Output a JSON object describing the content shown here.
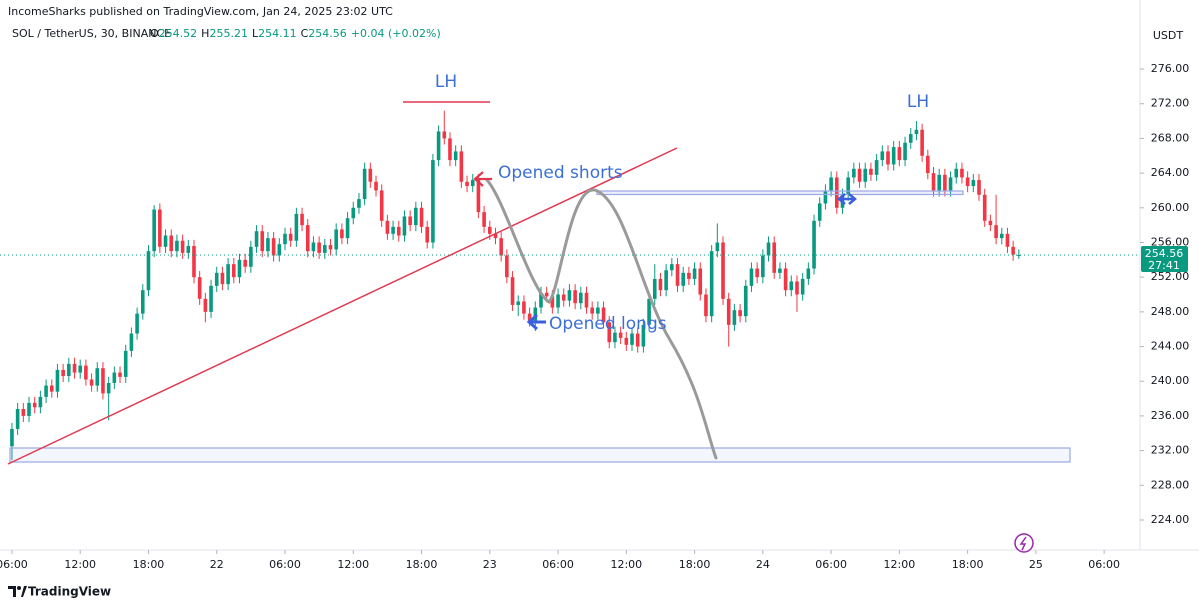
{
  "header": {
    "published": "IncomeSharks published on TradingView.com, Jan 24, 2025 23:02 UTC",
    "brand": "TradingView"
  },
  "chart_data": {
    "type": "candlestick",
    "legend": {
      "symbol": "SOL / TetherUS, 30, BINANCE",
      "fields": [
        {
          "label": "O",
          "value": 254.52
        },
        {
          "label": "H",
          "value": 255.21
        },
        {
          "label": "L",
          "value": 254.11
        },
        {
          "label": "C",
          "value": 254.56
        }
      ],
      "change": "+0.04 (+0.02%)"
    },
    "currency": "USDT",
    "countdown": "27:41",
    "annotations": [
      "LH",
      "Opened shorts",
      "Opened longs",
      "LH"
    ],
    "up_color": "#089981",
    "down_color": "#f23645",
    "grid": false,
    "xlim": [
      -2.1,
      198.3
    ],
    "ylim": [
      220.54,
      283.96
    ],
    "xticks": [
      {
        "value": 0,
        "label": "06:00"
      },
      {
        "value": 12,
        "label": "12:00"
      },
      {
        "value": 24,
        "label": "18:00"
      },
      {
        "value": 36,
        "label": "22"
      },
      {
        "value": 48,
        "label": "06:00"
      },
      {
        "value": 60,
        "label": "12:00"
      },
      {
        "value": 72,
        "label": "18:00"
      },
      {
        "value": 84,
        "label": "23"
      },
      {
        "value": 96,
        "label": "06:00"
      },
      {
        "value": 108,
        "label": "12:00"
      },
      {
        "value": 120,
        "label": "18:00"
      },
      {
        "value": 132,
        "label": "24"
      },
      {
        "value": 144,
        "label": "06:00"
      },
      {
        "value": 156,
        "label": "12:00"
      },
      {
        "value": 168,
        "label": "18:00"
      },
      {
        "value": 180,
        "label": "25"
      },
      {
        "value": 192,
        "label": "06:00"
      }
    ],
    "yticks": [
      {
        "value": 224,
        "label": "224.00"
      },
      {
        "value": 228,
        "label": "228.00"
      },
      {
        "value": 232,
        "label": "232.00"
      },
      {
        "value": 236,
        "label": "236.00"
      },
      {
        "value": 240,
        "label": "240.00"
      },
      {
        "value": 244,
        "label": "244.00"
      },
      {
        "value": 248,
        "label": "248.00"
      },
      {
        "value": 252,
        "label": "252.00"
      },
      {
        "value": 256,
        "label": "256.00"
      },
      {
        "value": 260,
        "label": "260.00"
      },
      {
        "value": 264,
        "label": "264.00"
      },
      {
        "value": 268,
        "label": "268.00"
      },
      {
        "value": 272,
        "label": "272.00"
      },
      {
        "value": 276,
        "label": "276.00"
      }
    ],
    "open": [
      232.5,
      234.5,
      236.8,
      236.0,
      237.5,
      237.0,
      238.2,
      239.5,
      238.8,
      241.3,
      240.6,
      242.0,
      241.0,
      241.8,
      240.2,
      239.5,
      241.5,
      238.6,
      239.8,
      241.0,
      240.5,
      243.5,
      245.5,
      247.8,
      250.5,
      255.0,
      259.8,
      255.5,
      256.8,
      255.0,
      256.2,
      254.8,
      255.6,
      252.0,
      249.5,
      248.0,
      251.0,
      252.5,
      251.2,
      253.5,
      252.0,
      254.0,
      253.2,
      255.5,
      257.3,
      255.0,
      256.5,
      254.5,
      255.8,
      257.0,
      256.2,
      259.3,
      258.0,
      255.0,
      256.0,
      254.8,
      255.7,
      255.2,
      257.5,
      256.5,
      258.8,
      260.0,
      261.0,
      264.5,
      263.0,
      262.0,
      258.5,
      257.0,
      257.8,
      256.8,
      259.0,
      258.0,
      260.0,
      257.8,
      256.0,
      265.5,
      268.8,
      268.0,
      265.5,
      266.5,
      263.0,
      262.5,
      263.2,
      259.5,
      257.8,
      257.0,
      256.5,
      254.5,
      252.0,
      248.8,
      249.2,
      247.8,
      247.0,
      248.5,
      250.2,
      249.8,
      248.5,
      250.0,
      249.3,
      250.5,
      249.0,
      250.2,
      248.5,
      247.8,
      248.5,
      246.8,
      244.5,
      245.6,
      245.0,
      244.2,
      245.5,
      244.0,
      246.5,
      249.5,
      251.8,
      250.5,
      252.8,
      253.5,
      251.0,
      252.5,
      251.8,
      253.0,
      250.0,
      247.5,
      255.0,
      256.0,
      249.5,
      246.5,
      248.2,
      247.5,
      251.0,
      253.0,
      252.0,
      254.5,
      256.0,
      252.5,
      253.0,
      250.5,
      251.5,
      250.0,
      251.8,
      253.0,
      258.5,
      260.5,
      262.0,
      263.5,
      260.0,
      261.5,
      263.5,
      264.5,
      263.0,
      264.5,
      263.8,
      265.5,
      266.5,
      265.0,
      267.0,
      265.5,
      267.5,
      268.5,
      269.0,
      266.0,
      264.0,
      262.0,
      263.8,
      262.0,
      263.5,
      264.5,
      263.5,
      262.5,
      263.2,
      261.5,
      258.5,
      258.0,
      256.5,
      257.0,
      255.5,
      254.52
    ],
    "high": [
      235.2,
      237.5,
      237.5,
      238.2,
      238.2,
      238.9,
      240.2,
      240.2,
      242.0,
      242.0,
      242.7,
      242.7,
      242.5,
      242.5,
      240.9,
      242.2,
      242.2,
      240.5,
      241.7,
      241.7,
      244.2,
      246.2,
      248.5,
      251.2,
      255.7,
      260.3,
      260.5,
      257.5,
      257.5,
      256.9,
      256.9,
      256.3,
      256.3,
      252.7,
      250.2,
      251.7,
      253.2,
      253.2,
      254.2,
      254.2,
      254.7,
      254.7,
      256.2,
      258.0,
      258.0,
      257.2,
      257.2,
      256.5,
      257.7,
      257.7,
      260.0,
      260.0,
      258.7,
      256.7,
      256.7,
      256.4,
      256.4,
      258.2,
      258.2,
      259.5,
      260.7,
      261.7,
      265.2,
      265.2,
      263.7,
      262.7,
      259.2,
      258.5,
      258.5,
      259.7,
      259.7,
      260.7,
      260.7,
      258.5,
      266.2,
      269.5,
      271.2,
      268.7,
      267.2,
      267.2,
      263.7,
      263.9,
      263.9,
      260.2,
      258.5,
      257.7,
      257.2,
      255.2,
      252.7,
      249.9,
      249.9,
      248.5,
      249.2,
      250.9,
      250.9,
      250.5,
      250.7,
      250.7,
      251.2,
      251.2,
      250.9,
      250.9,
      249.2,
      249.2,
      249.2,
      247.5,
      246.3,
      246.3,
      245.7,
      246.2,
      246.2,
      247.2,
      250.2,
      253.5,
      252.5,
      253.5,
      254.2,
      254.2,
      253.2,
      253.2,
      253.7,
      253.7,
      250.7,
      255.7,
      258.2,
      256.7,
      250.2,
      248.9,
      248.9,
      251.7,
      253.7,
      253.7,
      255.2,
      256.7,
      256.7,
      253.7,
      253.7,
      252.2,
      252.2,
      252.5,
      253.7,
      259.2,
      261.2,
      262.7,
      264.2,
      264.2,
      262.2,
      264.2,
      265.2,
      265.2,
      265.2,
      265.2,
      266.2,
      267.2,
      267.2,
      267.7,
      267.7,
      268.2,
      269.2,
      270.0,
      269.7,
      266.7,
      264.7,
      264.5,
      264.5,
      264.2,
      265.2,
      265.2,
      264.2,
      263.9,
      263.9,
      262.2,
      259.2,
      261.5,
      257.7,
      257.7,
      256.2,
      255.21
    ],
    "low": [
      230.9,
      233.8,
      235.3,
      235.3,
      236.3,
      236.3,
      237.5,
      238.1,
      238.1,
      239.9,
      239.9,
      240.3,
      240.3,
      239.5,
      238.8,
      238.8,
      237.9,
      235.5,
      239.1,
      239.8,
      239.8,
      242.8,
      244.8,
      247.1,
      249.8,
      254.3,
      254.8,
      254.8,
      254.3,
      254.3,
      254.1,
      254.1,
      251.3,
      248.8,
      246.8,
      247.3,
      250.3,
      250.5,
      250.5,
      251.3,
      251.3,
      252.5,
      252.5,
      254.8,
      254.3,
      254.3,
      253.8,
      253.8,
      255.1,
      255.5,
      255.5,
      257.3,
      254.3,
      254.3,
      254.1,
      254.1,
      254.5,
      254.5,
      255.8,
      255.8,
      258.1,
      259.3,
      260.3,
      262.3,
      261.3,
      257.8,
      256.3,
      256.3,
      256.1,
      256.1,
      257.3,
      257.3,
      257.1,
      255.3,
      255.3,
      264.8,
      267.3,
      264.8,
      264.8,
      262.3,
      261.8,
      261.8,
      258.8,
      257.1,
      256.3,
      255.8,
      253.8,
      251.3,
      248.1,
      247.5,
      247.1,
      246.3,
      245.8,
      247.8,
      249.1,
      247.8,
      247.8,
      248.6,
      248.6,
      248.3,
      248.3,
      247.8,
      247.1,
      247.1,
      246.1,
      243.8,
      243.8,
      244.3,
      243.5,
      243.5,
      243.3,
      243.3,
      245.8,
      248.8,
      249.8,
      249.8,
      252.1,
      250.3,
      250.3,
      251.1,
      251.1,
      249.3,
      246.8,
      246.8,
      254.3,
      248.8,
      244.0,
      245.8,
      246.8,
      246.8,
      250.3,
      251.3,
      251.3,
      253.8,
      251.8,
      251.8,
      249.8,
      249.8,
      248.0,
      249.3,
      251.1,
      252.3,
      257.8,
      259.8,
      261.3,
      259.3,
      259.3,
      260.8,
      262.8,
      262.3,
      262.3,
      263.1,
      263.1,
      264.8,
      264.3,
      264.3,
      264.8,
      264.8,
      266.8,
      267.8,
      265.3,
      263.3,
      261.3,
      261.3,
      261.3,
      261.3,
      262.8,
      262.8,
      261.8,
      261.8,
      260.8,
      257.8,
      257.3,
      255.8,
      255.8,
      254.8,
      253.9,
      254.11
    ],
    "close": [
      234.5,
      236.8,
      236.0,
      237.5,
      237.0,
      238.2,
      239.5,
      238.8,
      241.3,
      240.6,
      242.0,
      241.0,
      241.8,
      240.2,
      239.5,
      241.5,
      238.6,
      239.8,
      241.0,
      240.5,
      243.5,
      245.5,
      247.8,
      250.5,
      255.0,
      259.8,
      255.5,
      256.8,
      255.0,
      256.2,
      254.8,
      255.6,
      252.0,
      249.5,
      248.0,
      251.0,
      252.5,
      251.2,
      253.5,
      252.0,
      254.0,
      253.2,
      255.5,
      257.3,
      255.0,
      256.5,
      254.5,
      255.8,
      257.0,
      256.2,
      259.3,
      258.0,
      255.0,
      256.0,
      254.8,
      255.7,
      255.2,
      257.5,
      256.5,
      258.8,
      260.0,
      261.0,
      264.5,
      263.0,
      262.0,
      258.5,
      257.0,
      257.8,
      256.8,
      259.0,
      258.0,
      260.0,
      257.8,
      256.0,
      265.5,
      268.8,
      268.0,
      265.5,
      266.5,
      263.0,
      262.5,
      263.2,
      259.5,
      257.8,
      257.0,
      256.5,
      254.5,
      252.0,
      248.8,
      249.2,
      247.8,
      247.0,
      248.5,
      250.2,
      249.8,
      248.5,
      250.0,
      249.3,
      250.5,
      249.0,
      250.2,
      248.5,
      247.8,
      248.5,
      246.8,
      244.5,
      245.6,
      245.0,
      244.2,
      245.5,
      244.0,
      246.5,
      249.5,
      251.8,
      250.5,
      252.8,
      253.5,
      251.0,
      252.5,
      251.8,
      253.0,
      250.0,
      247.5,
      255.0,
      256.0,
      249.5,
      246.5,
      248.2,
      247.5,
      251.0,
      253.0,
      252.0,
      254.5,
      256.0,
      252.5,
      253.0,
      250.5,
      251.5,
      250.0,
      251.8,
      253.0,
      258.5,
      260.5,
      262.0,
      263.5,
      260.0,
      261.5,
      263.5,
      264.5,
      263.0,
      264.5,
      263.8,
      265.5,
      266.5,
      265.0,
      267.0,
      265.5,
      267.5,
      268.5,
      269.0,
      266.0,
      264.0,
      262.0,
      263.8,
      262.0,
      263.5,
      264.5,
      263.5,
      262.5,
      263.2,
      261.5,
      258.5,
      258.0,
      256.5,
      257.0,
      255.5,
      254.6,
      254.56
    ]
  }
}
